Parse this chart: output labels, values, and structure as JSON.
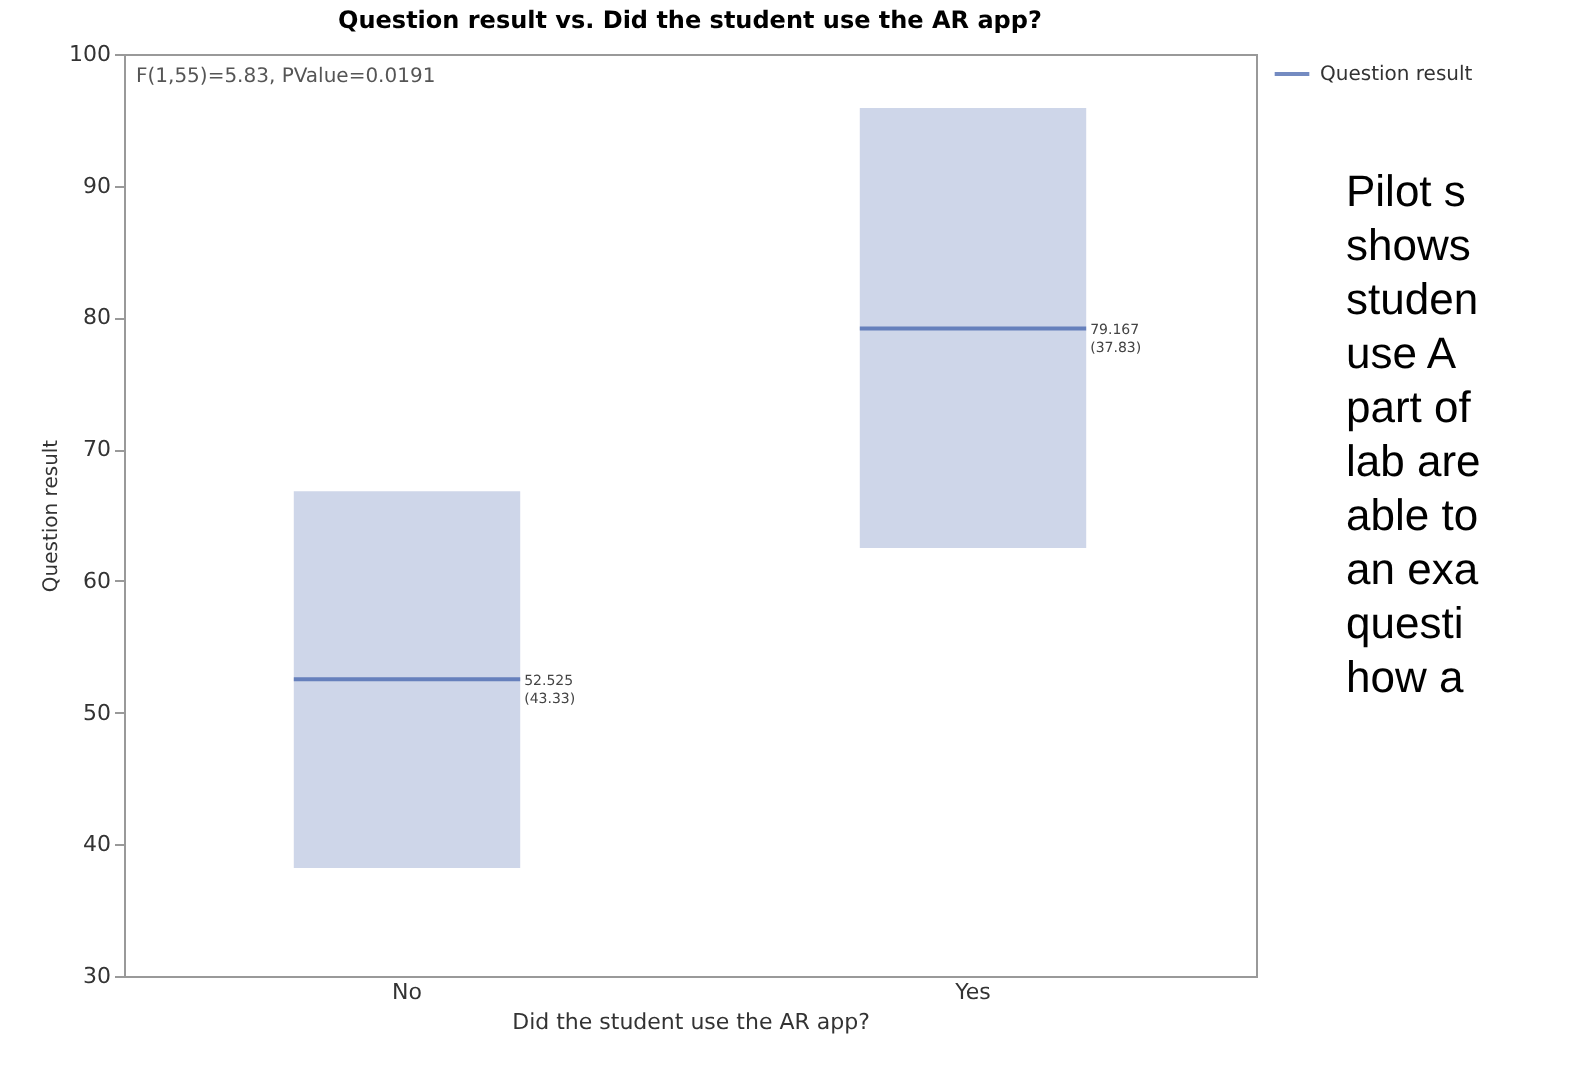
{
  "chart_data": {
    "type": "box",
    "title": "Question result vs. Did the student use the AR app?",
    "xlabel": "Did the student use the AR app?",
    "ylabel": "Question result",
    "categories": [
      "No",
      "Yes"
    ],
    "series": [
      {
        "name": "Question result",
        "color": "#3a5ba8",
        "boxes": [
          {
            "low": 38.2,
            "q1": 38.2,
            "median": 52.525,
            "q3": 66.8,
            "high": 66.8
          },
          {
            "low": 62.5,
            "q1": 62.5,
            "median": 79.167,
            "q3": 95.9,
            "high": 95.9
          }
        ],
        "value_labels": [
          "52.525\n(43.33)",
          "79.167\n(37.83)"
        ]
      }
    ],
    "ylim": [
      30,
      100
    ],
    "yticks": [
      30,
      40,
      50,
      60,
      70,
      80,
      90,
      100
    ],
    "grid": false,
    "legend": "top right",
    "annotations": [
      "F(1,55)=5.83, PValue=0.0191",
      "Pilot s\nshows\nstuden\nuse A\npart of\nlab are\nable to\nan exa\nquesti\nhow a"
    ]
  }
}
